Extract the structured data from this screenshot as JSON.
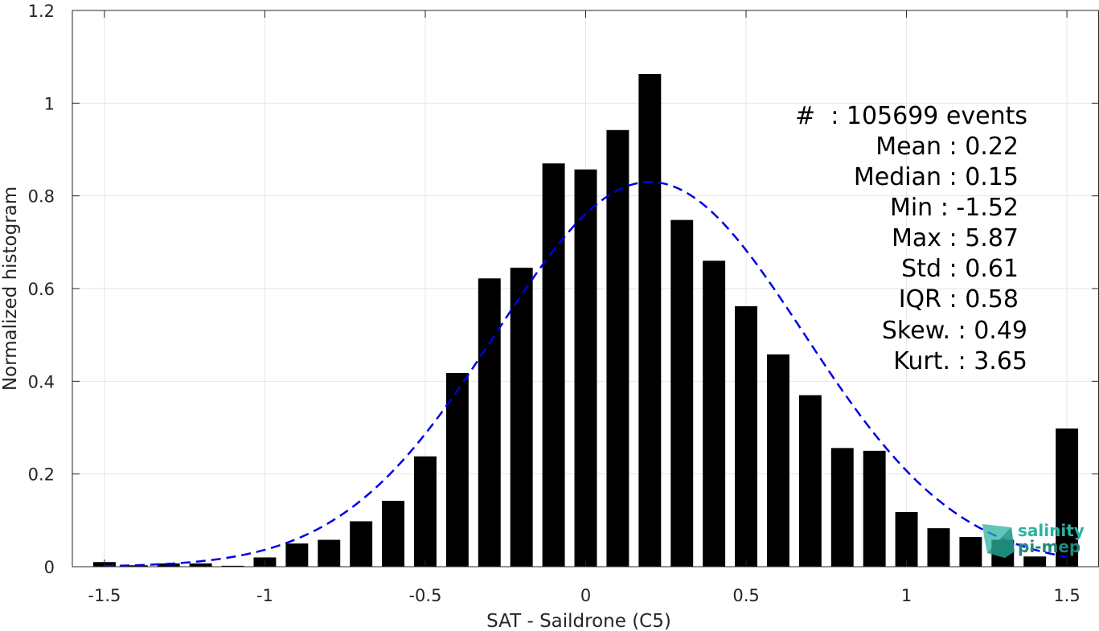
{
  "chart_data": {
    "type": "bar",
    "title": "",
    "xlabel": "SAT - Saildrone (C5)",
    "ylabel": "Normalized histogram",
    "xlim": [
      -1.6,
      1.6
    ],
    "ylim": [
      0,
      1.2
    ],
    "grid": true,
    "x_ticks": [
      -1.5,
      -1,
      -0.5,
      0,
      0.5,
      1,
      1.5
    ],
    "x_tick_labels": [
      "-1.5",
      "-1",
      "-0.5",
      "0",
      "0.5",
      "1",
      "1.5"
    ],
    "y_ticks": [
      0,
      0.2,
      0.4,
      0.6,
      0.8,
      1,
      1.2
    ],
    "y_tick_labels": [
      "0",
      "0.2",
      "0.4",
      "0.6",
      "0.8",
      "1",
      "1.2"
    ],
    "bar_width": 0.07,
    "bar_color": "#000000",
    "bins": [
      {
        "x": -1.5,
        "y": 0.01
      },
      {
        "x": -1.4,
        "y": 0.003
      },
      {
        "x": -1.3,
        "y": 0.007
      },
      {
        "x": -1.2,
        "y": 0.007
      },
      {
        "x": -1.1,
        "y": 0.002
      },
      {
        "x": -1.0,
        "y": 0.02
      },
      {
        "x": -0.9,
        "y": 0.05
      },
      {
        "x": -0.8,
        "y": 0.058
      },
      {
        "x": -0.7,
        "y": 0.098
      },
      {
        "x": -0.6,
        "y": 0.142
      },
      {
        "x": -0.5,
        "y": 0.238
      },
      {
        "x": -0.4,
        "y": 0.418
      },
      {
        "x": -0.3,
        "y": 0.622
      },
      {
        "x": -0.2,
        "y": 0.645
      },
      {
        "x": -0.1,
        "y": 0.87
      },
      {
        "x": 0.0,
        "y": 0.857
      },
      {
        "x": 0.1,
        "y": 0.942
      },
      {
        "x": 0.2,
        "y": 1.063
      },
      {
        "x": 0.3,
        "y": 0.748
      },
      {
        "x": 0.4,
        "y": 0.66
      },
      {
        "x": 0.5,
        "y": 0.562
      },
      {
        "x": 0.6,
        "y": 0.458
      },
      {
        "x": 0.7,
        "y": 0.37
      },
      {
        "x": 0.8,
        "y": 0.256
      },
      {
        "x": 0.9,
        "y": 0.25
      },
      {
        "x": 1.0,
        "y": 0.118
      },
      {
        "x": 1.1,
        "y": 0.083
      },
      {
        "x": 1.2,
        "y": 0.064
      },
      {
        "x": 1.3,
        "y": 0.058
      },
      {
        "x": 1.4,
        "y": 0.022
      },
      {
        "x": 1.5,
        "y": 0.298
      }
    ],
    "fit_curve": {
      "type": "gaussian",
      "style": "dashed",
      "color": "#0000e6",
      "mean": 0.2,
      "peak": 0.83,
      "sigma": 0.48
    },
    "stats": [
      "#  : 105699 events",
      "Mean : 0.22",
      "Median : 0.15",
      "Min : -1.52",
      "Max : 5.87",
      "Std : 0.61",
      "IQR : 0.58",
      "Skew. : 0.49",
      "Kurt. : 3.65"
    ]
  },
  "logo": {
    "line1": "salinity",
    "line2": "pi-mep",
    "color": "#2ab3a2",
    "color_dark": "#1e8a7c"
  }
}
